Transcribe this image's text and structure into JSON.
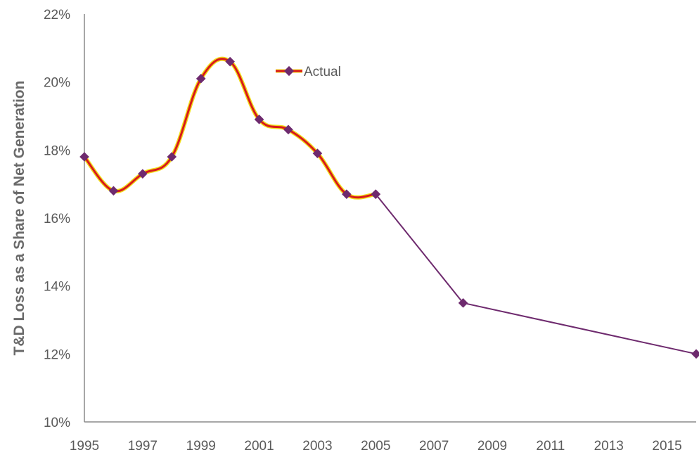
{
  "chart_data": {
    "type": "line",
    "title": "",
    "xlabel": "",
    "ylabel": "T&D Loss as a Share of Net Generation",
    "xlim": [
      1995,
      2016
    ],
    "ylim": [
      10,
      22
    ],
    "x_ticks": [
      "1995",
      "1997",
      "1999",
      "2001",
      "2003",
      "2005",
      "2007",
      "2009",
      "2011",
      "2013",
      "2015"
    ],
    "y_ticks": [
      "10%",
      "12%",
      "14%",
      "16%",
      "18%",
      "20%",
      "22%"
    ],
    "grid": false,
    "legend_position": "top-center",
    "series": [
      {
        "name": "Actual",
        "color": "#d91a1a",
        "highlight_color": "#f0dd1a",
        "marker_color": "#6e2a6e",
        "smooth": true,
        "x": [
          1995,
          1996,
          1997,
          1998,
          1999,
          2000,
          2001,
          2002,
          2003,
          2004,
          2005
        ],
        "y": [
          17.8,
          16.8,
          17.3,
          17.8,
          20.1,
          20.6,
          18.9,
          18.6,
          17.9,
          16.7,
          16.7
        ]
      },
      {
        "color": "#6e2a6e",
        "marker_color": "#6e2a6e",
        "smooth": false,
        "x": [
          2005,
          2008,
          2016
        ],
        "y": [
          16.7,
          13.5,
          12.0
        ]
      }
    ]
  }
}
